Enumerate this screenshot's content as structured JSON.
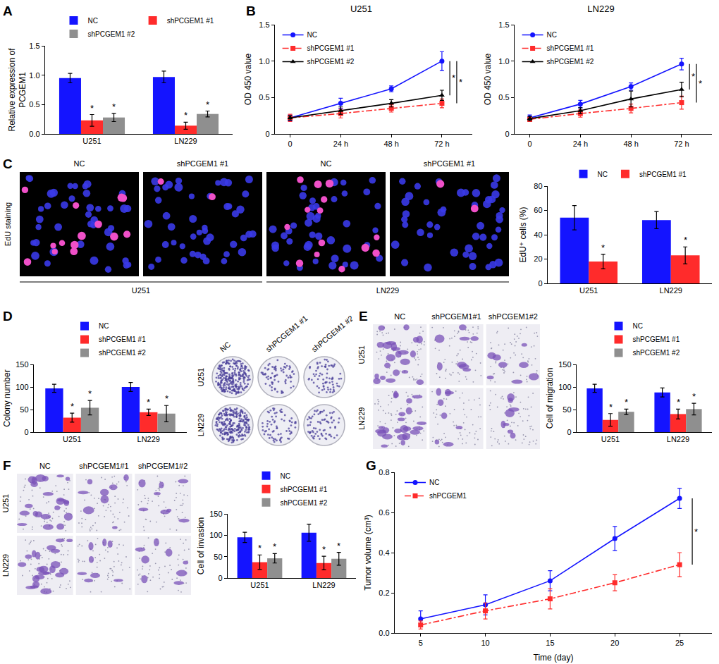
{
  "chart_data": [
    {
      "panel": "A",
      "type": "bar",
      "categories": [
        "U251",
        "LN229"
      ],
      "ylabel": [
        "Relative expression of",
        "PCGEM1"
      ],
      "ylim": [
        0,
        1.5
      ],
      "yticks": [
        {
          "value": 0,
          "label": "0.0"
        },
        0.5,
        {
          "value": 1,
          "label": "1.0"
        },
        1.5
      ],
      "legend": "top",
      "series": [
        {
          "name": "NC",
          "color": "#1414ff",
          "values": [
            0.95,
            0.97
          ],
          "errors": [
            0.08,
            0.1
          ]
        },
        {
          "name": "shPCGEM1 #1",
          "color": "#ff2b2b",
          "values": [
            0.23,
            0.14
          ],
          "errors": [
            0.1,
            0.06
          ],
          "significance": "*"
        },
        {
          "name": "shPCGEM1 #2",
          "color": "#8f8f8f",
          "values": [
            0.28,
            0.34
          ],
          "errors": [
            0.07,
            0.05
          ],
          "significance": "*"
        }
      ]
    },
    {
      "panel": "B",
      "type": "line",
      "title": "U251",
      "categories": [
        "0",
        "24 h",
        "48 h",
        "72 h"
      ],
      "ylabel": "OD 450 value",
      "ylim": [
        0,
        1.5
      ],
      "yticks": [
        0,
        0.5,
        {
          "value": 1,
          "label": "1.0"
        },
        1.5
      ],
      "legend": "top left",
      "series": [
        {
          "name": "NC",
          "color": "#1414ff",
          "marker": "circle",
          "line_style": "solid",
          "values": [
            0.22,
            0.42,
            0.62,
            1.0
          ],
          "errors": [
            0.04,
            0.07,
            0.04,
            0.13
          ]
        },
        {
          "name": "shPCGEM1 #1",
          "color": "#ff2b2b",
          "marker": "square",
          "line_style": "dashdot",
          "values": [
            0.22,
            0.28,
            0.35,
            0.42
          ],
          "errors": [
            0.05,
            0.06,
            0.05,
            0.06
          ],
          "significance": "*"
        },
        {
          "name": "shPCGEM1 #2",
          "color": "#000000",
          "marker": "triangle",
          "line_style": "solid",
          "values": [
            0.22,
            0.32,
            0.42,
            0.53
          ],
          "errors": [
            0.03,
            0.05,
            0.05,
            0.07
          ],
          "significance": "*"
        }
      ]
    },
    {
      "type": "line",
      "title": "LN229",
      "categories": [
        "0",
        "24 h",
        "48 h",
        "72 h"
      ],
      "ylabel": "OD 450 value",
      "ylim": [
        0,
        1.5
      ],
      "yticks": [
        0,
        0.5,
        {
          "value": 1,
          "label": "1.0"
        },
        1.5
      ],
      "legend": "top left",
      "series": [
        {
          "name": "NC",
          "color": "#1414ff",
          "marker": "circle",
          "line_style": "solid",
          "values": [
            0.22,
            0.41,
            0.65,
            0.96
          ],
          "errors": [
            0.04,
            0.05,
            0.05,
            0.08
          ]
        },
        {
          "name": "shPCGEM1 #1",
          "color": "#ff2b2b",
          "marker": "square",
          "line_style": "dashdot",
          "values": [
            0.2,
            0.28,
            0.35,
            0.43
          ],
          "errors": [
            0.03,
            0.05,
            0.06,
            0.09
          ],
          "significance": "*"
        },
        {
          "name": "shPCGEM1 #2",
          "color": "#000000",
          "marker": "triangle",
          "line_style": "solid",
          "values": [
            0.21,
            0.32,
            0.48,
            0.61
          ],
          "errors": [
            0.03,
            0.04,
            0.11,
            0.1
          ],
          "significance": "*"
        }
      ]
    },
    {
      "type": "bar",
      "categories": [
        "U251",
        "LN229"
      ],
      "ylabel": "EdU⁺ cells (%)",
      "ylim": [
        0,
        80
      ],
      "yticks": [
        0,
        20,
        40,
        60,
        80
      ],
      "legend": "top",
      "series": [
        {
          "name": "NC",
          "color": "#1414ff",
          "values": [
            54,
            52
          ],
          "errors": [
            10,
            7
          ]
        },
        {
          "name": "shPCGEM1 #1",
          "color": "#ff2b2b",
          "values": [
            18,
            23
          ],
          "errors": [
            6,
            7
          ],
          "significance": "*"
        }
      ]
    },
    {
      "panel": "D",
      "type": "bar",
      "categories": [
        "U251",
        "LN229"
      ],
      "ylabel": "Colony number",
      "ylim": [
        0,
        150
      ],
      "yticks": [
        0,
        50,
        100,
        150
      ],
      "legend": "top",
      "series": [
        {
          "name": "NC",
          "color": "#1414ff",
          "values": [
            97,
            100
          ],
          "errors": [
            9,
            10
          ]
        },
        {
          "name": "shPCGEM1 #1",
          "color": "#ff2b2b",
          "values": [
            32,
            44
          ],
          "errors": [
            10,
            7
          ],
          "significance": "*"
        },
        {
          "name": "shPCGEM1 #2",
          "color": "#8f8f8f",
          "values": [
            54,
            41
          ],
          "errors": [
            16,
            18
          ],
          "significance": "*"
        }
      ]
    },
    {
      "type": "bar",
      "categories": [
        "U251",
        "LN229"
      ],
      "ylabel": "Cell of migration",
      "ylim": [
        0,
        150
      ],
      "yticks": [
        0,
        50,
        100,
        150
      ],
      "legend": "top",
      "series": [
        {
          "name": "NC",
          "color": "#1414ff",
          "values": [
            97,
            88
          ],
          "errors": [
            9,
            10
          ]
        },
        {
          "name": "shPCGEM1 #1",
          "color": "#ff2b2b",
          "values": [
            27,
            40
          ],
          "errors": [
            14,
            11
          ],
          "significance": "*"
        },
        {
          "name": "shPCGEM1 #2",
          "color": "#8f8f8f",
          "values": [
            45,
            51
          ],
          "errors": [
            6,
            13
          ],
          "significance": "*"
        }
      ]
    },
    {
      "type": "bar",
      "categories": [
        "U251",
        "LN229"
      ],
      "ylabel": "Cell of invasion",
      "ylim": [
        0,
        150
      ],
      "yticks": [
        0,
        50,
        100,
        150
      ],
      "legend": "top",
      "series": [
        {
          "name": "NC",
          "color": "#1414ff",
          "values": [
            95,
            106
          ],
          "errors": [
            12,
            20
          ]
        },
        {
          "name": "shPCGEM1 #1",
          "color": "#ff2b2b",
          "values": [
            37,
            35
          ],
          "errors": [
            17,
            16
          ],
          "significance": "*"
        },
        {
          "name": "shPCGEM1 #2",
          "color": "#8f8f8f",
          "values": [
            46,
            45
          ],
          "errors": [
            11,
            15
          ],
          "significance": "*"
        }
      ]
    },
    {
      "panel": "G",
      "type": "line",
      "x": [
        5,
        10,
        15,
        20,
        25
      ],
      "xlabel": "Time (day)",
      "ylabel": "Tumor volume (cm³)",
      "xlim": [
        3,
        27.5
      ],
      "xticks": [
        5,
        10,
        15,
        20,
        25
      ],
      "ylim": [
        0,
        0.8
      ],
      "yticks": [
        {
          "value": 0,
          "label": "0.0"
        },
        0.2,
        0.4,
        0.6,
        0.8
      ],
      "legend": "top left",
      "series": [
        {
          "name": "NC",
          "color": "#1414ff",
          "marker": "circle",
          "line_style": "solid",
          "values": [
            0.07,
            0.14,
            0.26,
            0.47,
            0.67
          ],
          "errors": [
            0.04,
            0.05,
            0.05,
            0.06,
            0.05
          ]
        },
        {
          "name": "shPCGEM1",
          "color": "#ff2b2b",
          "marker": "square",
          "line_style": "dashdot",
          "values": [
            0.04,
            0.11,
            0.17,
            0.25,
            0.34
          ],
          "errors": [
            0.02,
            0.04,
            0.05,
            0.04,
            0.06
          ],
          "significance": "*"
        }
      ]
    }
  ],
  "images": [
    {
      "panel": "C",
      "kind": "fluorescence",
      "side_label": "EdU staining",
      "columns": [
        "NC",
        "shPCGEM1 #1",
        "NC",
        "shPCGEM1 #1"
      ],
      "groups": [
        "U251",
        "LN229"
      ]
    },
    {
      "kind": "plates",
      "columns": [
        "NC",
        "shPCGEM1 #1",
        "shPCGEM1 #2"
      ],
      "rows": [
        "U251",
        "LN229"
      ]
    },
    {
      "panel": "E",
      "kind": "transwell",
      "columns": [
        "NC",
        "shPCGEM1#1",
        "shPCGEM1#2"
      ],
      "rows": [
        "U251",
        "LN229"
      ]
    },
    {
      "panel": "F",
      "kind": "transwell",
      "columns": [
        "NC",
        "shPCGEM1#1",
        "shPCGEM1#2"
      ],
      "rows": [
        "U251",
        "LN229"
      ]
    }
  ]
}
